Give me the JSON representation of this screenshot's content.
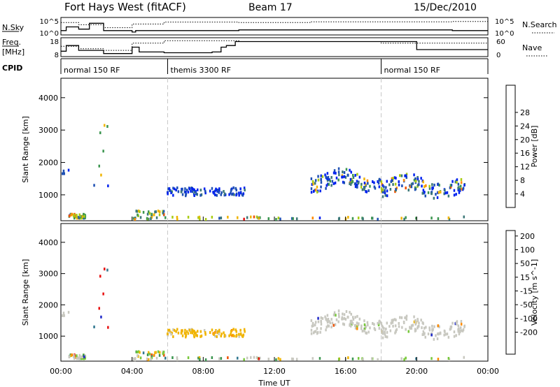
{
  "header": {
    "station": "Fort Hays West (fitACF)",
    "beam": "Beam 17",
    "date": "15/Dec/2010"
  },
  "param_panels": {
    "nsky_label": "N.Sky",
    "nsky_ticks": [
      "10^5",
      "10^0"
    ],
    "nsearch_label": "N.Search",
    "nsearch_ticks": [
      "10^5",
      "10^0"
    ],
    "freq_label_1": "Freq.",
    "freq_label_2": "[MHz]",
    "freq_ticks": [
      "18",
      "8"
    ],
    "nave_label": "Nave",
    "nave_ticks": [
      "60",
      "0"
    ],
    "cpid_label": "CPID",
    "cpid_segments": [
      {
        "label": "normal 150 RF",
        "start": 0,
        "end": 6
      },
      {
        "label": "themis 3300 RF",
        "start": 6,
        "end": 18
      },
      {
        "label": "normal 150 RF",
        "start": 18,
        "end": 24
      }
    ]
  },
  "chart_data": [
    {
      "type": "heatmap",
      "name": "power",
      "ylabel": "Slant Range [km]",
      "yticks": [
        "1000",
        "2000",
        "3000",
        "4000"
      ],
      "ytick_values": [
        1000,
        2000,
        3000,
        4000
      ],
      "ylim": [
        200,
        4600
      ],
      "xlim": [
        0,
        24
      ],
      "colorbar": {
        "label": "Power [dB]",
        "ticks": [
          "4",
          "8",
          "12",
          "16",
          "20",
          "24",
          "28"
        ],
        "colors": [
          "#0022ee",
          "#1e50b4",
          "#3c7878",
          "#3c9650",
          "#aacc14",
          "#f0b400",
          "#ff8c00",
          "#f05000",
          "#e81010"
        ]
      }
    },
    {
      "type": "heatmap",
      "name": "velocity",
      "ylabel": "Slant Range [km]",
      "yticks": [
        "1000",
        "2000",
        "3000",
        "4000"
      ],
      "ytick_values": [
        1000,
        2000,
        3000,
        4000
      ],
      "ylim": [
        200,
        4600
      ],
      "xlim": [
        0,
        24
      ],
      "colorbar": {
        "label": "Velocity [m s^-1]",
        "ticks": [
          "200",
          "100",
          "50",
          "15",
          "-15",
          "-50",
          "-100",
          "-200"
        ],
        "colors": [
          "#1e28c8",
          "#327890",
          "#3c9650",
          "#78c83c",
          "#c8c8c0",
          "#f0b400",
          "#ff8c00",
          "#f05000",
          "#e81010"
        ]
      }
    }
  ],
  "x_axis": {
    "title": "Time UT",
    "ticks": [
      "00:00",
      "04:00",
      "08:00",
      "12:00",
      "16:00",
      "20:00",
      "00:00"
    ],
    "tick_values": [
      0,
      4,
      8,
      12,
      16,
      20,
      24
    ]
  }
}
